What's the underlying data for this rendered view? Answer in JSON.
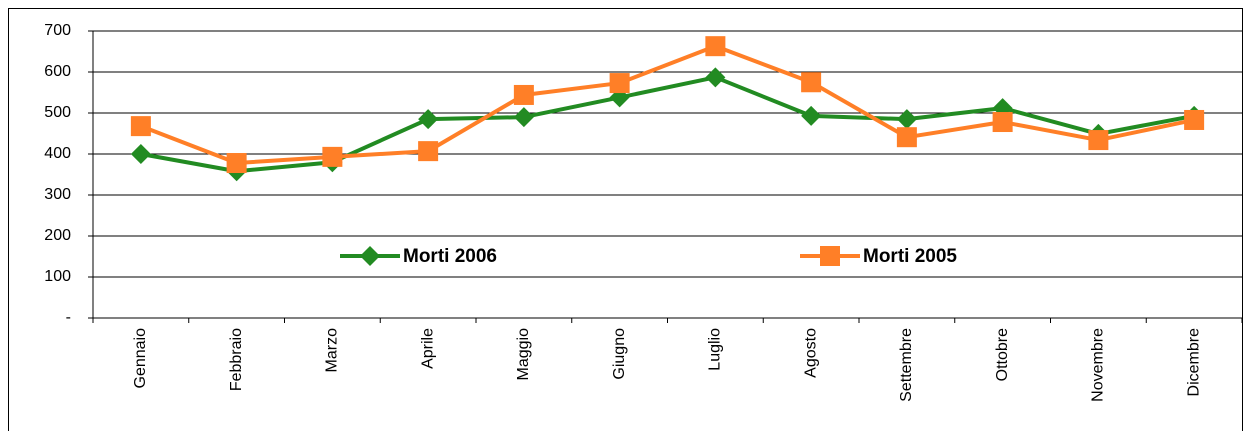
{
  "chart_data": {
    "type": "line",
    "categories": [
      "Gennaio",
      "Febbraio",
      "Marzo",
      "Aprile",
      "Maggio",
      "Giugno",
      "Luglio",
      "Agosto",
      "Settembre",
      "Ottobre",
      "Novembre",
      "Dicembre"
    ],
    "series": [
      {
        "name": "Morti 2006",
        "color": "#228B22",
        "marker": "diamond",
        "values": [
          400,
          358,
          380,
          485,
          490,
          538,
          587,
          493,
          485,
          512,
          449,
          493
        ]
      },
      {
        "name": "Morti 2005",
        "color": "#FF7F27",
        "marker": "square",
        "values": [
          468,
          378,
          393,
          407,
          544,
          573,
          663,
          575,
          441,
          478,
          434,
          483
        ]
      }
    ],
    "ylim": [
      0,
      700
    ],
    "yticks": [
      {
        "value": 0,
        "label": "-"
      },
      100,
      200,
      300,
      400,
      500,
      600,
      700
    ],
    "grid": true,
    "legend": "center"
  }
}
